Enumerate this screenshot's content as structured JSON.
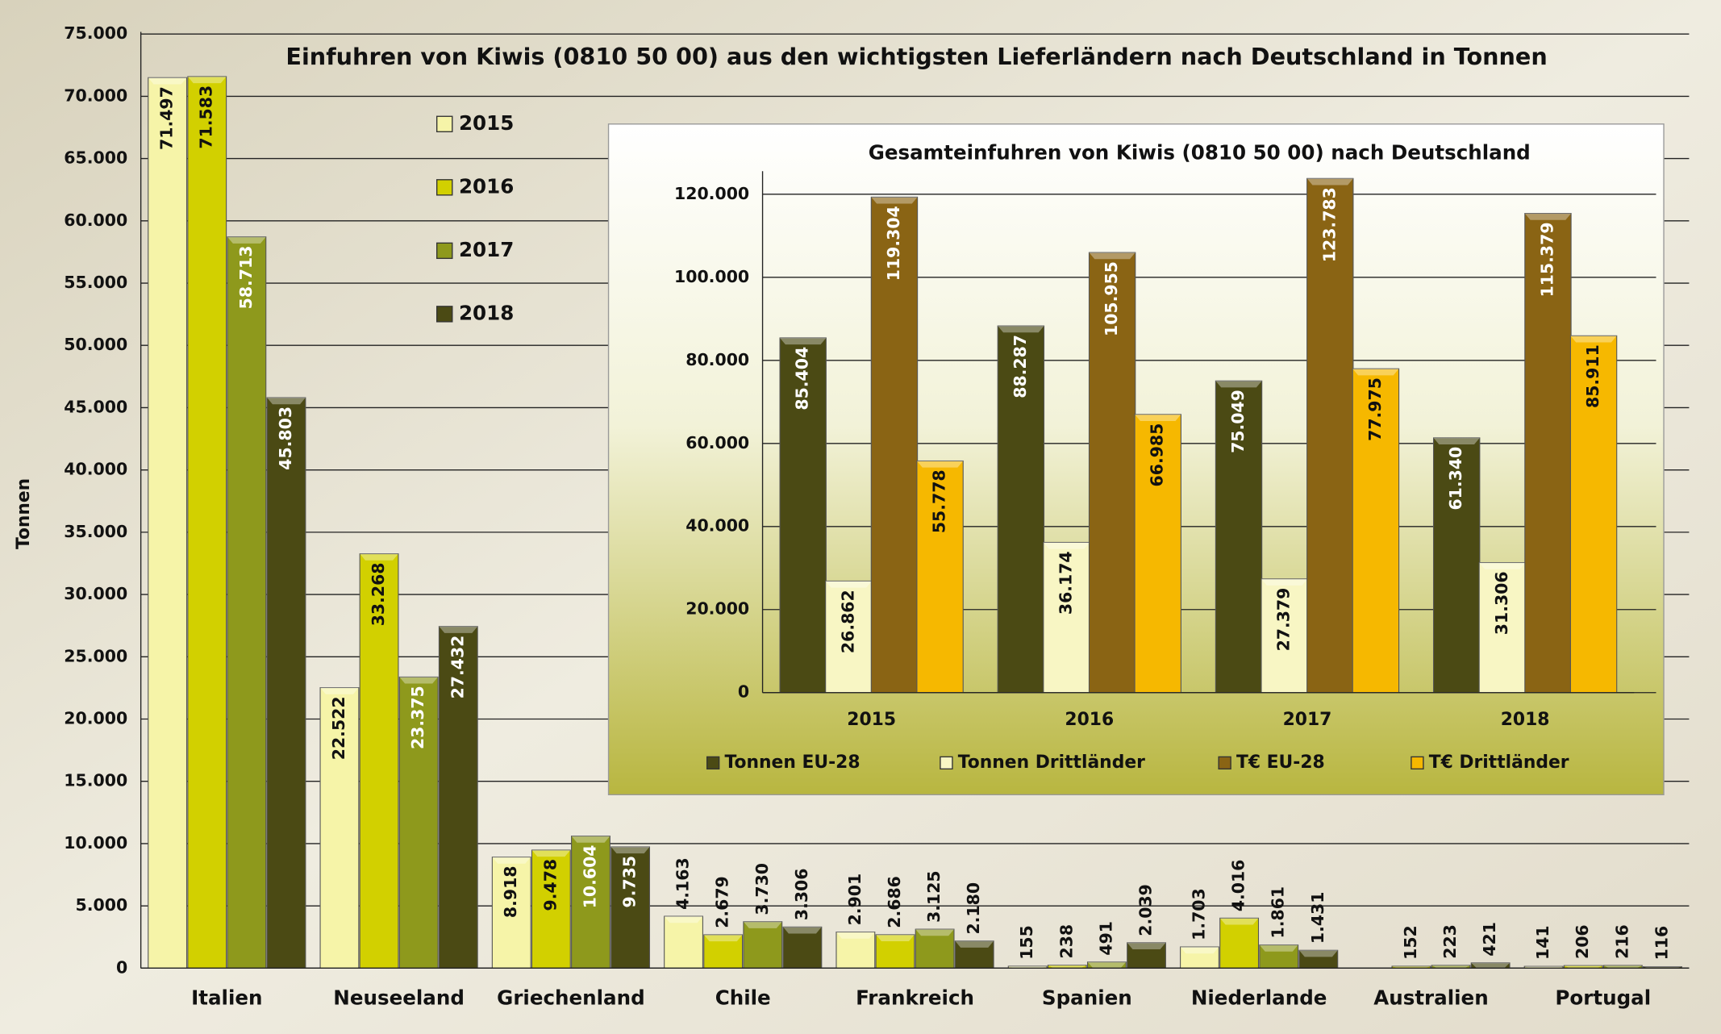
{
  "chart_data": [
    {
      "type": "bar",
      "title": "Einfuhren von Kiwis (0810 50 00) aus den wichtigsten Lieferländern nach Deutschland in Tonnen",
      "y_label": "Tonnen",
      "categories": [
        "Italien",
        "Neuseeland",
        "Griechenland",
        "Chile",
        "Frankreich",
        "Spanien",
        "Niederlande",
        "Australien",
        "Portugal"
      ],
      "series": [
        {
          "name": "2015",
          "color": "#f6f4a8",
          "values": [
            71497,
            22522,
            8918,
            4163,
            2901,
            155,
            1703,
            null,
            141
          ],
          "value_labels": [
            "71.497",
            "22.522",
            "8.918",
            "4.163",
            "2.901",
            "155",
            "1.703",
            null,
            "141"
          ]
        },
        {
          "name": "2016",
          "color": "#d2d000",
          "values": [
            71583,
            33268,
            9478,
            2679,
            2686,
            238,
            4016,
            152,
            206
          ],
          "value_labels": [
            "71.583",
            "33.268",
            "9.478",
            "2.679",
            "2.686",
            "238",
            "4.016",
            "152",
            "206"
          ]
        },
        {
          "name": "2017",
          "color": "#8e991c",
          "values": [
            58713,
            23375,
            10604,
            3730,
            3125,
            491,
            1861,
            223,
            216
          ],
          "value_labels": [
            "58.713",
            "23.375",
            "10.604",
            "3.730",
            "3.125",
            "491",
            "1.861",
            "223",
            "216"
          ]
        },
        {
          "name": "2018",
          "color": "#4b4a14",
          "values": [
            45803,
            27432,
            9735,
            3306,
            2180,
            2039,
            1431,
            421,
            116
          ],
          "value_labels": [
            "45.803",
            "27.432",
            "9.735",
            "3.306",
            "2.180",
            "2.039",
            "1.431",
            "421",
            "116"
          ]
        }
      ],
      "ylim": [
        0,
        75000
      ],
      "yticks": [
        0,
        {
          "value": 5000,
          "label": "5.000"
        },
        {
          "value": 10000,
          "label": "10.000"
        },
        {
          "value": 15000,
          "label": "15.000"
        },
        {
          "value": 20000,
          "label": "20.000"
        },
        {
          "value": 25000,
          "label": "25.000"
        },
        {
          "value": 30000,
          "label": "30.000"
        },
        {
          "value": 35000,
          "label": "35.000"
        },
        {
          "value": 40000,
          "label": "40.000"
        },
        {
          "value": 45000,
          "label": "45.000"
        },
        {
          "value": 50000,
          "label": "50.000"
        },
        {
          "value": 55000,
          "label": "55.000"
        },
        {
          "value": 60000,
          "label": "60.000"
        },
        {
          "value": 65000,
          "label": "65.000"
        },
        {
          "value": 70000,
          "label": "70.000"
        },
        {
          "value": 75000,
          "label": "75.000"
        }
      ],
      "grid": true
    },
    {
      "type": "bar",
      "title": "Gesamteinfuhren von Kiwis (0810 50 00) nach Deutschland",
      "categories": [
        "2015",
        "2016",
        "2017",
        "2018"
      ],
      "series": [
        {
          "name": "Tonnen EU-28",
          "color": "#4b4a14",
          "values": [
            85404,
            88287,
            75049,
            61340
          ],
          "value_labels": [
            "85.404",
            "88.287",
            "75.049",
            "61.340"
          ]
        },
        {
          "name": "Tonnen Drittländer",
          "color": "#f8f6c4",
          "values": [
            26862,
            36174,
            27379,
            31306
          ],
          "value_labels": [
            "26.862",
            "36.174",
            "27.379",
            "31.306"
          ]
        },
        {
          "name": "T€ EU-28",
          "color": "#8a6414",
          "values": [
            119304,
            105955,
            123783,
            115379
          ],
          "value_labels": [
            "119.304",
            "105.955",
            "123.783",
            "115.379"
          ]
        },
        {
          "name": "T€ Drittländer",
          "color": "#f6b800",
          "values": [
            55778,
            66985,
            77975,
            85911
          ],
          "value_labels": [
            "55.778",
            "66.985",
            "77.975",
            "85.911"
          ]
        }
      ],
      "ylim": [
        0,
        125000
      ],
      "yticks": [
        0,
        {
          "value": 20000,
          "label": "20.000"
        },
        {
          "value": 40000,
          "label": "40.000"
        },
        {
          "value": 60000,
          "label": "60.000"
        },
        {
          "value": 80000,
          "label": "80.000"
        },
        {
          "value": 100000,
          "label": "100.000"
        },
        {
          "value": 120000,
          "label": "120.000"
        }
      ],
      "grid": true
    }
  ]
}
